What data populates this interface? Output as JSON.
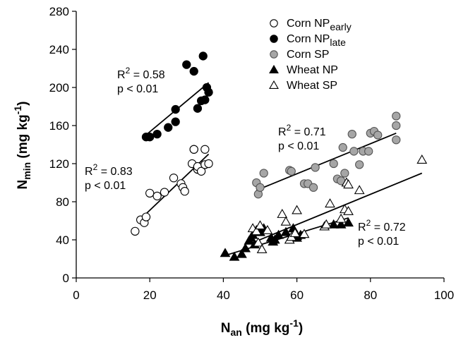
{
  "chart_data": {
    "type": "scatter",
    "xlabel": {
      "main": "N",
      "sub": "an",
      "unit_pre": " (mg kg",
      "unit_sup": "-1",
      "unit_post": ")"
    },
    "ylabel": {
      "main": "N",
      "sub": "min",
      "unit_pre": " (mg kg",
      "unit_sup": "-1",
      "unit_post": ")"
    },
    "xlim": [
      0,
      100
    ],
    "ylim": [
      0,
      280
    ],
    "xticks": [
      "0",
      "20",
      "40",
      "60",
      "80",
      "100"
    ],
    "yticks": [
      "0",
      "40",
      "80",
      "120",
      "160",
      "200",
      "240",
      "280"
    ],
    "grid": false,
    "legend_position": "top-right",
    "series": [
      {
        "name": "Corn NP",
        "name_sub": "early",
        "marker": "circle-open",
        "color": "#000000",
        "fill": "#ffffff",
        "points": [
          [
            16,
            49
          ],
          [
            17.5,
            61
          ],
          [
            18.5,
            58
          ],
          [
            19,
            64
          ],
          [
            20,
            89
          ],
          [
            22,
            86
          ],
          [
            24,
            90
          ],
          [
            26.5,
            105
          ],
          [
            28.5,
            99
          ],
          [
            29,
            95
          ],
          [
            29.5,
            91
          ],
          [
            31.5,
            120
          ],
          [
            32,
            135
          ],
          [
            32,
            135
          ],
          [
            33,
            114
          ],
          [
            33,
            117
          ],
          [
            34,
            112
          ],
          [
            35,
            135
          ],
          [
            35,
            119
          ],
          [
            36,
            120
          ]
        ],
        "fit": {
          "x": [
            17,
            36
          ],
          "y": [
            60,
            130
          ]
        },
        "annotation": {
          "r2_pre": "R",
          "r2_sup": "2",
          "r2_value": " = 0.83",
          "p": "p < 0.01"
        }
      },
      {
        "name": "Corn NP",
        "name_sub": "late",
        "marker": "circle-filled",
        "color": "#000000",
        "fill": "#000000",
        "points": [
          [
            19,
            148
          ],
          [
            20,
            148
          ],
          [
            22,
            151
          ],
          [
            25,
            158
          ],
          [
            27,
            164
          ],
          [
            27,
            177
          ],
          [
            30,
            224
          ],
          [
            32,
            217
          ],
          [
            33,
            178
          ],
          [
            34,
            186
          ],
          [
            34.5,
            233
          ],
          [
            35,
            187
          ],
          [
            35.5,
            200
          ],
          [
            36,
            195
          ]
        ],
        "fit": {
          "x": [
            18,
            36
          ],
          "y": [
            147,
            205
          ]
        },
        "annotation": {
          "r2_pre": "R",
          "r2_sup": "2",
          "r2_value": " = 0.58",
          "p": "p < 0.01"
        }
      },
      {
        "name": "Corn SP",
        "marker": "circle-gray",
        "color": "#555555",
        "fill": "#a6a6a6",
        "points": [
          [
            49,
            100
          ],
          [
            49.5,
            88
          ],
          [
            50,
            95
          ],
          [
            51,
            110
          ],
          [
            58,
            113
          ],
          [
            58.5,
            112
          ],
          [
            62,
            99
          ],
          [
            63,
            99
          ],
          [
            64.5,
            95
          ],
          [
            65,
            116
          ],
          [
            70,
            120
          ],
          [
            71,
            104
          ],
          [
            72,
            102
          ],
          [
            72.5,
            137
          ],
          [
            73,
            110
          ],
          [
            75,
            151
          ],
          [
            75.5,
            133
          ],
          [
            77,
            119
          ],
          [
            78,
            133
          ],
          [
            79.5,
            133
          ],
          [
            80,
            152
          ],
          [
            81,
            154
          ],
          [
            82,
            150
          ],
          [
            87,
            160
          ],
          [
            87,
            145
          ],
          [
            87,
            170
          ]
        ],
        "fit": {
          "x": [
            49,
            87
          ],
          "y": [
            92,
            152
          ]
        },
        "annotation": {
          "r2_pre": "R",
          "r2_sup": "2",
          "r2_value": " = 0.71",
          "p": "p < 0.01"
        }
      },
      {
        "name": "Wheat NP",
        "marker": "triangle-filled",
        "color": "#000000",
        "fill": "#000000",
        "points": [
          [
            40.5,
            26
          ],
          [
            43,
            22
          ],
          [
            45,
            25
          ],
          [
            46,
            31
          ],
          [
            47,
            39
          ],
          [
            47.5,
            42
          ],
          [
            48,
            45
          ],
          [
            48.5,
            35
          ],
          [
            49,
            50
          ],
          [
            50,
            48
          ],
          [
            51,
            52
          ],
          [
            53,
            42
          ],
          [
            53.5,
            38
          ],
          [
            54,
            40
          ],
          [
            55,
            45
          ],
          [
            57,
            48
          ],
          [
            59,
            52
          ],
          [
            60,
            44
          ],
          [
            60,
            42
          ],
          [
            61,
            45
          ],
          [
            70,
            56
          ],
          [
            72,
            56
          ],
          [
            74,
            58
          ]
        ],
        "fit": {
          "x": [
            40,
            74
          ],
          "y": [
            23,
            63
          ]
        }
      },
      {
        "name": "Wheat SP",
        "marker": "triangle-open",
        "color": "#000000",
        "fill": "#ffffff",
        "points": [
          [
            48,
            52
          ],
          [
            49,
            49
          ],
          [
            49.5,
            37
          ],
          [
            50,
            55
          ],
          [
            50.5,
            30
          ],
          [
            52,
            50
          ],
          [
            56,
            67
          ],
          [
            57,
            59
          ],
          [
            58,
            40
          ],
          [
            58.5,
            43
          ],
          [
            59.5,
            47
          ],
          [
            60,
            71
          ],
          [
            62,
            46
          ],
          [
            67.5,
            54
          ],
          [
            68,
            56
          ],
          [
            69,
            78
          ],
          [
            72,
            62
          ],
          [
            73,
            72
          ],
          [
            73.5,
            100
          ],
          [
            74,
            70
          ],
          [
            74,
            98
          ],
          [
            77,
            92
          ],
          [
            94,
            124
          ]
        ],
        "fit": {
          "x": [
            48,
            94
          ],
          "y": [
            37,
            110
          ]
        },
        "annotation": {
          "r2_pre": "R",
          "r2_sup": "2",
          "r2_value": " = 0.72",
          "p": "p < 0.01"
        }
      }
    ]
  }
}
